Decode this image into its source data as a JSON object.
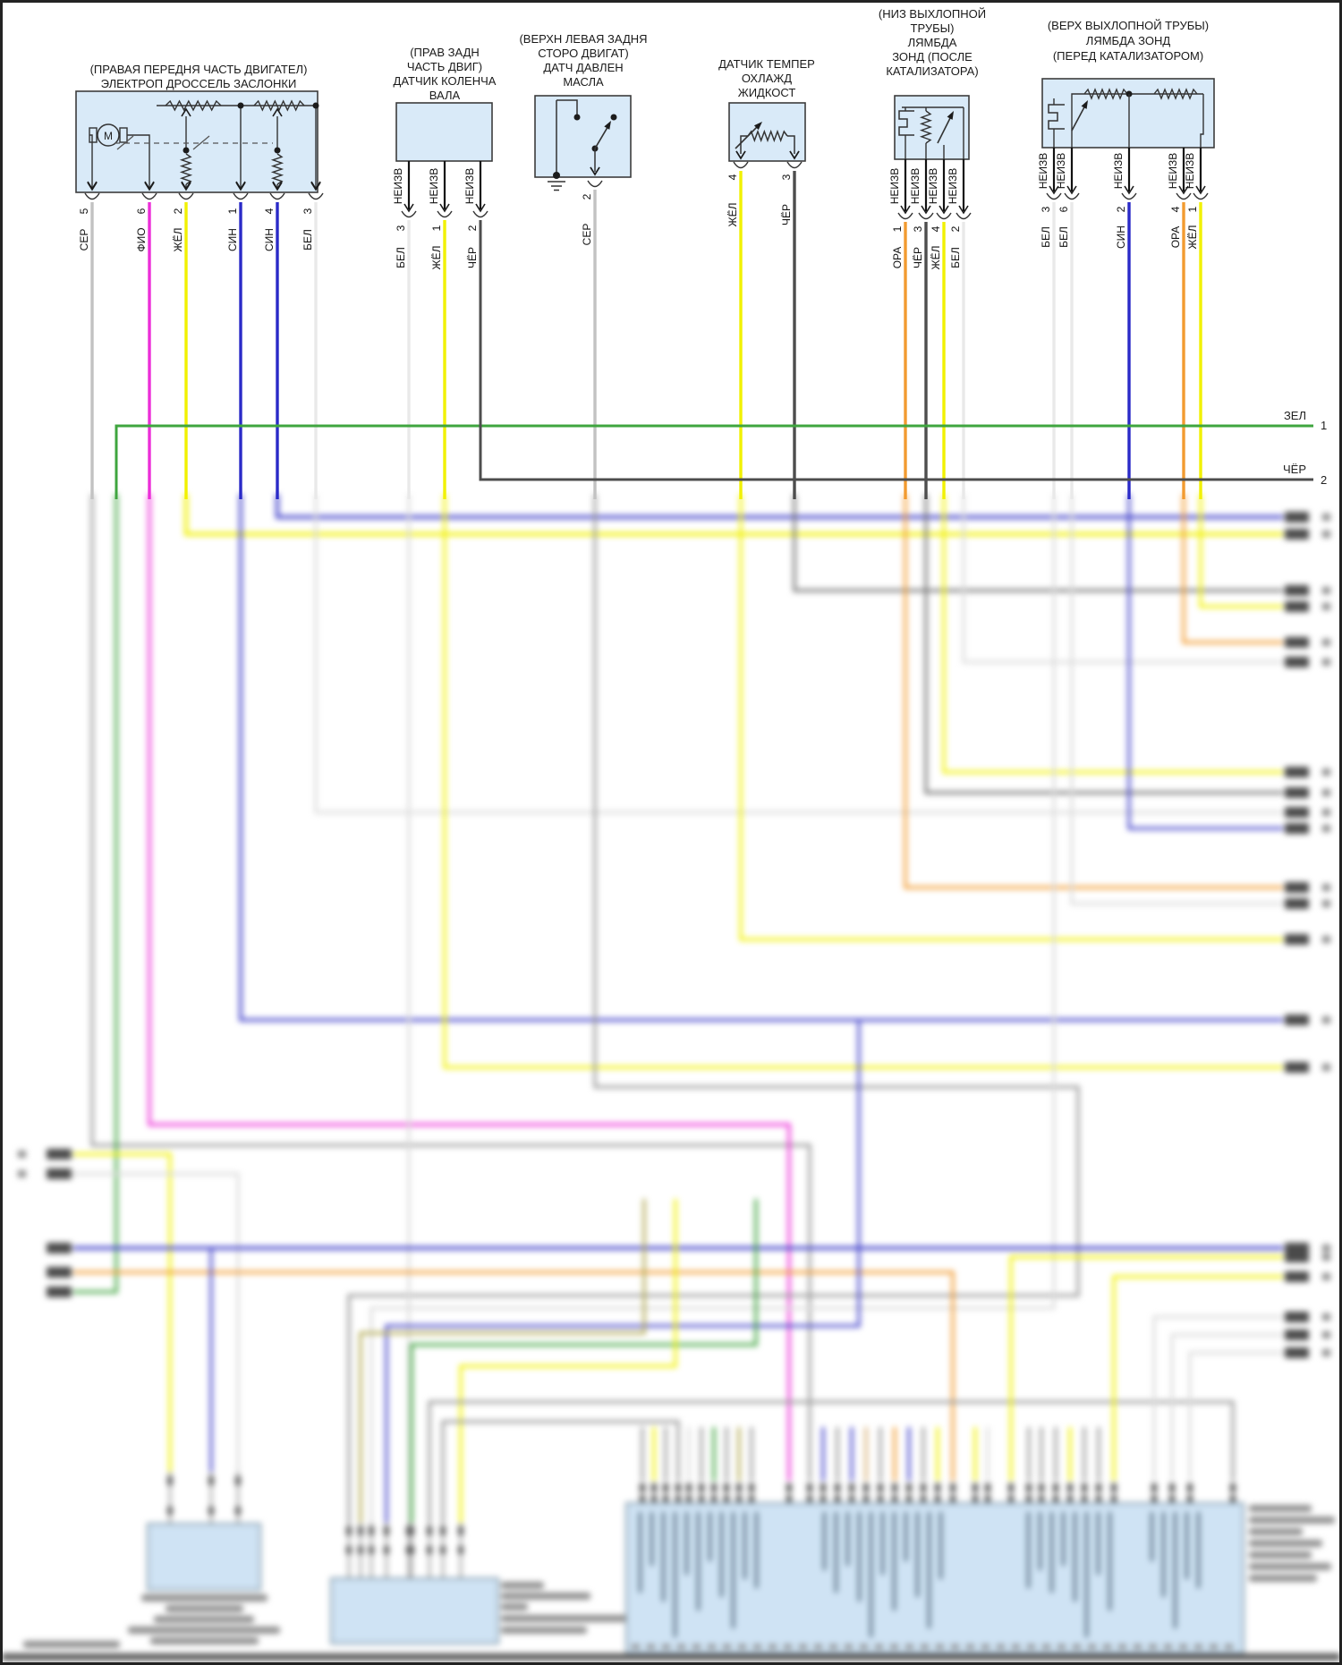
{
  "diagram": {
    "background": "#ffffff",
    "frame_color": "#222222",
    "stub_label": "НЕИЗВ",
    "palette": {
      "СЕР": "#c2c2c2",
      "ФИО": "#ec2ed8",
      "ЖЁЛ": "#f1f100",
      "СИН": "#2a2ac8",
      "БЕЛ": "#e9e9e9",
      "ЧЁР": "#4d4d4d",
      "ОРА": "#f29b30",
      "ЗЕЛ": "#3fa53f",
      "box_fill": "#d9eaf8",
      "box_border": "#3c3c3c",
      "stub_wire": "#111111"
    },
    "components": [
      {
        "id": "electronic-throttle",
        "title_lines": [
          "(ПРАВАЯ ПЕРЕДНЯ ЧАСТЬ ДВИГАТЕЛ)",
          "ЭЛЕКТРОП ДРОССЕЛЬ ЗАСЛОНКИ"
        ],
        "motor_label": "М",
        "pins": [
          {
            "num": "5",
            "color": "СЕР"
          },
          {
            "num": "6",
            "color": "ФИО"
          },
          {
            "num": "2",
            "color": "ЖЁЛ"
          },
          {
            "num": "1",
            "color": "СИН"
          },
          {
            "num": "4",
            "color": "СИН"
          },
          {
            "num": "3",
            "color": "БЕЛ"
          }
        ]
      },
      {
        "id": "crankshaft-sensor",
        "title_lines": [
          "(ПРАВ ЗАДН",
          "ЧАСТЬ ДВИГ)",
          "ДАТЧИК КОЛЕНЧА",
          "ВАЛА"
        ],
        "pins": [
          {
            "num": "3",
            "color": "БЕЛ",
            "stub": true
          },
          {
            "num": "1",
            "color": "ЖЁЛ",
            "stub": true
          },
          {
            "num": "2",
            "color": "ЧЁР",
            "stub": true
          }
        ]
      },
      {
        "id": "oil-pressure-sensor",
        "title_lines": [
          "(ВЕРХН ЛЕВАЯ ЗАДНЯ",
          "СТОРО ДВИГАТ)",
          "ДАТЧ ДАВЛЕН",
          "МАСЛА"
        ],
        "pins": [
          {
            "num": "2",
            "color": "СЕР"
          }
        ]
      },
      {
        "id": "coolant-temp-sensor",
        "title_lines": [
          "ДАТЧИК ТЕМПЕР",
          "ОХЛАЖД",
          "ЖИДКОСТ"
        ],
        "pins": [
          {
            "num": "4",
            "color": "ЖЁЛ"
          },
          {
            "num": "3",
            "color": "ЧЁР"
          }
        ]
      },
      {
        "id": "lambda-post-catalyst",
        "title_lines": [
          "(НИЗ ВЫХЛОПНОЙ",
          "ТРУБЫ)",
          "ЛЯМБДА",
          "ЗОНД (ПОСЛЕ",
          "КАТАЛИЗАТОРА)"
        ],
        "pins": [
          {
            "num": "1",
            "color": "ОРА",
            "stub": true
          },
          {
            "num": "3",
            "color": "ЧЁР",
            "stub": true
          },
          {
            "num": "4",
            "color": "ЖЁЛ",
            "stub": true
          },
          {
            "num": "2",
            "color": "БЕЛ",
            "stub": true
          }
        ]
      },
      {
        "id": "lambda-pre-catalyst",
        "title_lines": [
          "(ВЕРХ ВЫХЛОПНОЙ ТРУБЫ)",
          "ЛЯМБДА ЗОНД",
          "(ПЕРЕД КАТАЛИЗАТОРОМ)"
        ],
        "pins": [
          {
            "num": "3",
            "color": "БЕЛ",
            "stub": true
          },
          {
            "num": "6",
            "color": "БЕЛ",
            "stub": true
          },
          {
            "num": "2",
            "color": "СИН",
            "stub": true
          },
          {
            "num": "4",
            "color": "ОРА",
            "stub": true
          },
          {
            "num": "1",
            "color": "ЖЁЛ",
            "stub": true
          }
        ]
      }
    ],
    "bus_wires": [
      {
        "label": "ЗЕЛ",
        "num": "1",
        "color": "ЗЕЛ"
      },
      {
        "label": "ЧЁР",
        "num": "2",
        "color": "ЧЁР"
      }
    ]
  }
}
